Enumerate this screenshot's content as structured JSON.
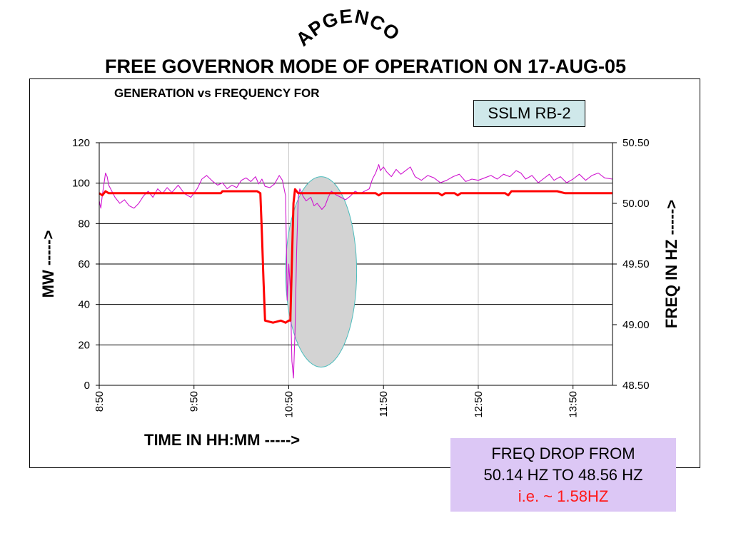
{
  "brand": "APGENCO",
  "title": "FREE GOVERNOR MODE OF OPERATION ON 17-AUG-05",
  "unit_label": "SSLM RB-2",
  "annotation": {
    "line1": "FREQ DROP FROM",
    "line2": "50.14 HZ TO 48.56 HZ",
    "line3": "i.e. ~ 1.58HZ"
  },
  "chart_data": {
    "type": "line",
    "title": "GENERATION vs FREQUENCY FOR",
    "xlabel": "TIME IN HH:MM ----->",
    "ylabel_left": "MW ----->",
    "ylabel_right": "FREQ IN HZ ----->",
    "x_ticks": [
      "8:50",
      "9:50",
      "10:50",
      "11:50",
      "12:50",
      "13:50"
    ],
    "x_range": [
      "8:50",
      "14:15"
    ],
    "y_left": {
      "range": [
        0,
        120
      ],
      "ticks": [
        "0",
        "20",
        "40",
        "60",
        "80",
        "100",
        "120"
      ]
    },
    "y_right": {
      "range": [
        48.5,
        50.5
      ],
      "ticks": [
        "48.50",
        "49.00",
        "49.50",
        "50.00",
        "50.50"
      ]
    },
    "grid": "horizontal lines on left-axis ticks, light vertical lines at x ticks",
    "highlight": {
      "shape": "ellipse",
      "x_from": "10:48",
      "x_to": "11:33",
      "freq_from": 48.65,
      "freq_to": 50.22
    },
    "series": [
      {
        "name": "MW",
        "axis": "left",
        "color": "#ff0000",
        "points": [
          [
            "8:50",
            95
          ],
          [
            "8:52",
            94
          ],
          [
            "8:54",
            96
          ],
          [
            "8:56",
            95
          ],
          [
            "8:58",
            95
          ],
          [
            "9:10",
            95
          ],
          [
            "9:30",
            95
          ],
          [
            "9:50",
            95
          ],
          [
            "10:07",
            95
          ],
          [
            "10:08",
            96
          ],
          [
            "10:30",
            96
          ],
          [
            "10:32",
            95
          ],
          [
            "10:33",
            75
          ],
          [
            "10:34",
            52
          ],
          [
            "10:35",
            32
          ],
          [
            "10:40",
            31
          ],
          [
            "10:45",
            32
          ],
          [
            "10:48",
            31
          ],
          [
            "10:50",
            32
          ],
          [
            "10:51",
            32
          ],
          [
            "10:53",
            90
          ],
          [
            "10:54",
            97
          ],
          [
            "10:56",
            95
          ],
          [
            "11:00",
            95
          ],
          [
            "11:20",
            95
          ],
          [
            "11:45",
            95
          ],
          [
            "11:47",
            94
          ],
          [
            "11:49",
            95
          ],
          [
            "12:25",
            95
          ],
          [
            "12:27",
            94
          ],
          [
            "12:29",
            95
          ],
          [
            "12:35",
            95
          ],
          [
            "12:37",
            94
          ],
          [
            "12:39",
            95
          ],
          [
            "13:07",
            95
          ],
          [
            "13:09",
            94
          ],
          [
            "13:11",
            96
          ],
          [
            "13:35",
            96
          ],
          [
            "13:40",
            96
          ],
          [
            "13:45",
            95
          ],
          [
            "14:15",
            95
          ]
        ]
      },
      {
        "name": "FREQ",
        "axis": "right",
        "color": "#d016d0",
        "points": [
          [
            "8:50",
            50.02
          ],
          [
            "8:51",
            49.96
          ],
          [
            "8:52",
            50.07
          ],
          [
            "8:53",
            50.16
          ],
          [
            "8:54",
            50.25
          ],
          [
            "8:55",
            50.22
          ],
          [
            "8:56",
            50.15
          ],
          [
            "8:58",
            50.1
          ],
          [
            "9:00",
            50.05
          ],
          [
            "9:03",
            50.0
          ],
          [
            "9:06",
            50.03
          ],
          [
            "9:09",
            49.98
          ],
          [
            "9:12",
            49.96
          ],
          [
            "9:15",
            50.0
          ],
          [
            "9:18",
            50.06
          ],
          [
            "9:21",
            50.1
          ],
          [
            "9:24",
            50.05
          ],
          [
            "9:27",
            50.12
          ],
          [
            "9:30",
            50.08
          ],
          [
            "9:33",
            50.13
          ],
          [
            "9:36",
            50.09
          ],
          [
            "9:40",
            50.15
          ],
          [
            "9:44",
            50.08
          ],
          [
            "9:48",
            50.05
          ],
          [
            "9:52",
            50.12
          ],
          [
            "9:55",
            50.2
          ],
          [
            "9:58",
            50.23
          ],
          [
            "10:02",
            50.18
          ],
          [
            "10:05",
            50.15
          ],
          [
            "10:08",
            50.17
          ],
          [
            "10:11",
            50.12
          ],
          [
            "10:14",
            50.15
          ],
          [
            "10:17",
            50.13
          ],
          [
            "10:20",
            50.19
          ],
          [
            "10:23",
            50.21
          ],
          [
            "10:26",
            50.18
          ],
          [
            "10:29",
            50.22
          ],
          [
            "10:31",
            50.16
          ],
          [
            "10:33",
            50.2
          ],
          [
            "10:35",
            50.14
          ],
          [
            "10:38",
            50.13
          ],
          [
            "10:41",
            50.16
          ],
          [
            "10:44",
            50.23
          ],
          [
            "10:46",
            50.19
          ],
          [
            "10:48",
            50.06
          ],
          [
            "10:49",
            49.2
          ],
          [
            "10:50",
            49.5
          ],
          [
            "10:51",
            49.3
          ],
          [
            "10:52",
            48.7
          ],
          [
            "10:53",
            48.56
          ],
          [
            "10:54",
            48.95
          ],
          [
            "10:55",
            49.6
          ],
          [
            "10:56",
            50.05
          ],
          [
            "10:57",
            50.12
          ],
          [
            "10:59",
            50.06
          ],
          [
            "11:01",
            50.02
          ],
          [
            "11:04",
            50.05
          ],
          [
            "11:06",
            49.98
          ],
          [
            "11:08",
            50.0
          ],
          [
            "11:11",
            49.95
          ],
          [
            "11:13",
            49.98
          ],
          [
            "11:15",
            50.05
          ],
          [
            "11:17",
            50.1
          ],
          [
            "11:20",
            50.07
          ],
          [
            "11:23",
            50.05
          ],
          [
            "11:26",
            50.03
          ],
          [
            "11:29",
            50.06
          ],
          [
            "11:32",
            50.1
          ],
          [
            "11:35",
            50.08
          ],
          [
            "11:38",
            50.1
          ],
          [
            "11:41",
            50.12
          ],
          [
            "11:43",
            50.2
          ],
          [
            "11:45",
            50.25
          ],
          [
            "11:47",
            50.32
          ],
          [
            "11:48",
            50.27
          ],
          [
            "11:50",
            50.3
          ],
          [
            "11:52",
            50.26
          ],
          [
            "11:55",
            50.22
          ],
          [
            "11:58",
            50.28
          ],
          [
            "12:01",
            50.24
          ],
          [
            "12:04",
            50.27
          ],
          [
            "12:07",
            50.3
          ],
          [
            "12:10",
            50.22
          ],
          [
            "12:14",
            50.19
          ],
          [
            "12:18",
            50.23
          ],
          [
            "12:22",
            50.21
          ],
          [
            "12:26",
            50.17
          ],
          [
            "12:30",
            50.19
          ],
          [
            "12:34",
            50.22
          ],
          [
            "12:38",
            50.24
          ],
          [
            "12:42",
            50.18
          ],
          [
            "12:46",
            50.2
          ],
          [
            "12:50",
            50.19
          ],
          [
            "12:54",
            50.21
          ],
          [
            "12:58",
            50.23
          ],
          [
            "13:02",
            50.2
          ],
          [
            "13:06",
            50.24
          ],
          [
            "13:10",
            50.22
          ],
          [
            "13:14",
            50.27
          ],
          [
            "13:17",
            50.25
          ],
          [
            "13:20",
            50.2
          ],
          [
            "13:24",
            50.23
          ],
          [
            "13:28",
            50.17
          ],
          [
            "13:32",
            50.21
          ],
          [
            "13:35",
            50.24
          ],
          [
            "13:38",
            50.19
          ],
          [
            "13:42",
            50.22
          ],
          [
            "13:46",
            50.17
          ],
          [
            "13:50",
            50.2
          ],
          [
            "13:54",
            50.24
          ],
          [
            "13:58",
            50.19
          ],
          [
            "14:02",
            50.23
          ],
          [
            "14:06",
            50.25
          ],
          [
            "14:10",
            50.21
          ],
          [
            "14:15",
            50.2
          ]
        ]
      }
    ]
  }
}
